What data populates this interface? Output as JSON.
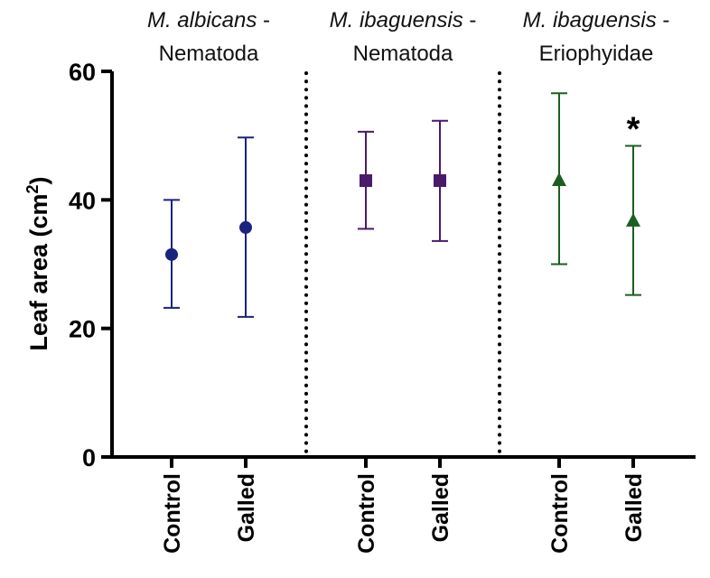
{
  "chart_data": {
    "type": "scatter",
    "ylabel": "Leaf area",
    "ylabel_unit": "(cm",
    "ylabel_sup": "2",
    "ylabel_close": ")",
    "ylim": [
      0,
      60
    ],
    "yticks": [
      0,
      20,
      40,
      60
    ],
    "grid": false,
    "legend": "none",
    "groups": [
      {
        "title_italic": "M. albicans",
        "title_dash": " -",
        "title_line2": "Nematoda",
        "color": "#1a237e",
        "marker": "circle",
        "points": [
          {
            "category": "Control",
            "mean": 31.5,
            "lower": 23.2,
            "upper": 40.0
          },
          {
            "category": "Galled",
            "mean": 35.7,
            "lower": 21.8,
            "upper": 49.7
          }
        ]
      },
      {
        "title_italic": "M. ibaguensis",
        "title_dash": " -",
        "title_line2": "Nematoda",
        "color": "#4a1a6b",
        "marker": "square",
        "points": [
          {
            "category": "Control",
            "mean": 43.0,
            "lower": 35.5,
            "upper": 50.6
          },
          {
            "category": "Galled",
            "mean": 43.0,
            "lower": 33.6,
            "upper": 52.3
          }
        ]
      },
      {
        "title_italic": "M. ibaguensis",
        "title_dash": " -",
        "title_line2": "Eriophyidae",
        "color": "#1b5e20",
        "marker": "triangle",
        "points": [
          {
            "category": "Control",
            "mean": 43.0,
            "lower": 30.0,
            "upper": 56.6
          },
          {
            "category": "Galled",
            "mean": 36.7,
            "lower": 25.2,
            "upper": 48.4,
            "annotation": "*"
          }
        ]
      }
    ]
  }
}
